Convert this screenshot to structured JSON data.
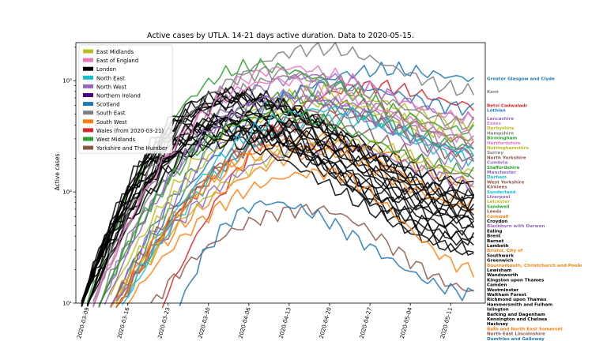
{
  "chart_data": {
    "type": "line",
    "title": "Active cases by UTLA.  14-21 days active duration.  Data to 2020-05-15.",
    "xlabel": "",
    "ylabel": "Active cases",
    "yscale": "log",
    "ylim": [
      10,
      2200
    ],
    "xlim": [
      "2020-03-07",
      "2020-05-17"
    ],
    "y_ticks": [
      {
        "value": 10,
        "label": "10¹"
      },
      {
        "value": 100,
        "label": "10²"
      },
      {
        "value": 1000,
        "label": "10³"
      }
    ],
    "x_ticks": [
      "2020-03-09",
      "2020-03-16",
      "2020-03-23",
      "2020-03-30",
      "2020-04-06",
      "2020-04-13",
      "2020-04-20",
      "2020-04-27",
      "2020-05-04",
      "2020-05-11"
    ],
    "grid": false,
    "legend_position": "top-left",
    "legend": [
      {
        "name": "East Midlands",
        "color": "#bcbd22"
      },
      {
        "name": "East of England",
        "color": "#e377c2"
      },
      {
        "name": "London",
        "color": "#000000"
      },
      {
        "name": "North East",
        "color": "#17becf"
      },
      {
        "name": "North West",
        "color": "#9467bd"
      },
      {
        "name": "Northern Ireland",
        "color": "#4b0082"
      },
      {
        "name": "Scotland",
        "color": "#1f77b4"
      },
      {
        "name": "South East",
        "color": "#7f7f7f"
      },
      {
        "name": "South West",
        "color": "#ff7f0e"
      },
      {
        "name": "Wales (from 2020-03-21)",
        "color": "#d62728"
      },
      {
        "name": "West Midlands",
        "color": "#2ca02c"
      },
      {
        "name": "Yorkshire and The Humber",
        "color": "#8c564b"
      }
    ],
    "series": [
      {
        "name": "Greater Glasgow and Clyde",
        "region": "Scotland",
        "start": "2020-03-12",
        "rise": 3.2,
        "peak_date": "2020-05-01",
        "peak": 1250,
        "end": 1050
      },
      {
        "name": "Kent",
        "region": "South East",
        "start": "2020-03-09",
        "rise": 3.6,
        "peak_date": "2020-04-19",
        "peak": 1950,
        "end": 800
      },
      {
        "name": "Betsi Cadwaladr",
        "region": "Wales (from 2020-03-21)",
        "start": "2020-03-21",
        "rise": 3.0,
        "peak_date": "2020-04-28",
        "peak": 900,
        "end": 600
      },
      {
        "name": "Lothian",
        "region": "Scotland",
        "start": "2020-03-12",
        "rise": 3.2,
        "peak_date": "2020-04-22",
        "peak": 900,
        "end": 560
      },
      {
        "name": "Lancashire",
        "region": "North West",
        "start": "2020-03-10",
        "rise": 3.5,
        "peak_date": "2020-04-18",
        "peak": 1100,
        "end": 460
      },
      {
        "name": "Derbyshire",
        "region": "East Midlands",
        "start": "2020-03-11",
        "rise": 3.5,
        "peak_date": "2020-04-20",
        "peak": 800,
        "end": 400
      },
      {
        "name": "Birmingham",
        "region": "West Midlands",
        "start": "2020-03-08",
        "rise": 3.7,
        "peak_date": "2020-04-08",
        "peak": 1350,
        "end": 350
      },
      {
        "name": "Cornwall",
        "region": "South West",
        "start": "2020-03-12",
        "rise": 3.0,
        "peak_date": "2020-04-25",
        "peak": 250,
        "end": 120
      },
      {
        "name": "North Yorkshire",
        "region": "Yorkshire and The Humber",
        "start": "2020-03-13",
        "rise": 3.1,
        "peak_date": "2020-04-25",
        "peak": 600,
        "end": 280
      },
      {
        "name": "Cumbria",
        "region": "North West",
        "start": "2020-03-12",
        "rise": 3.3,
        "peak_date": "2020-04-20",
        "peak": 650,
        "end": 250
      },
      {
        "name": "West Yorkshire",
        "region": "Yorkshire and The Humber",
        "start": "2020-03-13",
        "rise": 3.1,
        "peak_date": "2020-04-24",
        "peak": 500,
        "end": 220
      },
      {
        "name": "Kirklees",
        "region": "Yorkshire and The Humber",
        "start": "2020-03-13",
        "rise": 3.2,
        "peak_date": "2020-04-24",
        "peak": 480,
        "end": 200
      },
      {
        "name": "Essex",
        "region": "East of England",
        "start": "2020-03-09",
        "rise": 3.5,
        "peak_date": "2020-04-14",
        "peak": 1300,
        "end": 450
      },
      {
        "name": "Nottinghamshire",
        "region": "East Midlands",
        "start": "2020-03-12",
        "rise": 3.3,
        "peak_date": "2020-04-20",
        "peak": 650,
        "end": 300
      },
      {
        "name": "Hampshire",
        "region": "South East",
        "start": "2020-03-10",
        "rise": 3.4,
        "peak_date": "2020-04-15",
        "peak": 1100,
        "end": 400
      },
      {
        "name": "Staffordshire",
        "region": "West Midlands",
        "start": "2020-03-10",
        "rise": 3.5,
        "peak_date": "2020-04-14",
        "peak": 700,
        "end": 250
      },
      {
        "name": "Sunderland",
        "region": "North East",
        "start": "2020-03-14",
        "rise": 3.0,
        "peak_date": "2020-04-22",
        "peak": 450,
        "end": 200
      },
      {
        "name": "Croydon",
        "region": "London",
        "start": "2020-03-07",
        "rise": 3.3,
        "peak_date": "2020-04-06",
        "peak": 700,
        "end": 120
      },
      {
        "name": "Ealing",
        "region": "London",
        "start": "2020-03-07",
        "rise": 3.4,
        "peak_date": "2020-04-05",
        "peak": 650,
        "end": 110
      },
      {
        "name": "Brent",
        "region": "London",
        "start": "2020-03-07",
        "rise": 3.5,
        "peak_date": "2020-04-03",
        "peak": 800,
        "end": 95
      },
      {
        "name": "Barnet",
        "region": "London",
        "start": "2020-03-07",
        "rise": 3.4,
        "peak_date": "2020-04-04",
        "peak": 700,
        "end": 90
      },
      {
        "name": "Leeds",
        "region": "Yorkshire and The Humber",
        "start": "2020-03-12",
        "rise": 3.2,
        "peak_date": "2020-04-20",
        "peak": 400,
        "end": 140
      },
      {
        "name": "Bristol, City of",
        "region": "South West",
        "start": "2020-03-12",
        "rise": 3.0,
        "peak_date": "2020-04-18",
        "peak": 300,
        "end": 80
      },
      {
        "name": "Leicester",
        "region": "East Midlands",
        "start": "2020-03-12",
        "rise": 3.1,
        "peak_date": "2020-04-24",
        "peak": 280,
        "end": 150
      },
      {
        "name": "Blackburn with Darwen",
        "region": "North West",
        "start": "2020-03-12",
        "rise": 3.2,
        "peak_date": "2020-04-22",
        "peak": 260,
        "end": 120
      },
      {
        "name": "Lewisham",
        "region": "London",
        "start": "2020-03-08",
        "rise": 3.2,
        "peak_date": "2020-04-06",
        "peak": 450,
        "end": 70
      },
      {
        "name": "Wandsworth",
        "region": "London",
        "start": "2020-03-08",
        "rise": 3.2,
        "peak_date": "2020-04-06",
        "peak": 500,
        "end": 65
      },
      {
        "name": "Bournemouth, Christchurch and Poole",
        "region": "South West",
        "start": "2020-03-13",
        "rise": 3.0,
        "peak_date": "2020-04-16",
        "peak": 250,
        "end": 72
      },
      {
        "name": "Kingston upon Thames",
        "region": "London",
        "start": "2020-03-08",
        "rise": 3.1,
        "peak_date": "2020-04-07",
        "peak": 350,
        "end": 62
      },
      {
        "name": "Westminster",
        "region": "London",
        "start": "2020-03-07",
        "rise": 3.3,
        "peak_date": "2020-04-01",
        "peak": 400,
        "end": 55
      },
      {
        "name": "Waltham Forest",
        "region": "London",
        "start": "2020-03-07",
        "rise": 3.3,
        "peak_date": "2020-04-03",
        "peak": 450,
        "end": 50
      },
      {
        "name": "Richmond upon Thames",
        "region": "London",
        "start": "2020-03-07",
        "rise": 3.2,
        "peak_date": "2020-04-04",
        "peak": 350,
        "end": 45
      },
      {
        "name": "Hammersmith and Fulham",
        "region": "London",
        "start": "2020-03-07",
        "rise": 3.2,
        "peak_date": "2020-04-03",
        "peak": 400,
        "end": 40
      },
      {
        "name": "Islington",
        "region": "London",
        "start": "2020-03-07",
        "rise": 3.2,
        "peak_date": "2020-04-03",
        "peak": 350,
        "end": 37
      },
      {
        "name": "Barking and Dagenham",
        "region": "London",
        "start": "2020-03-08",
        "rise": 3.2,
        "peak_date": "2020-04-04",
        "peak": 300,
        "end": 35
      },
      {
        "name": "Kensington and Chelsea",
        "region": "London",
        "start": "2020-03-07",
        "rise": 3.2,
        "peak_date": "2020-04-01",
        "peak": 280,
        "end": 30
      },
      {
        "name": "Hackney",
        "region": "London",
        "start": "2020-03-07",
        "rise": 3.3,
        "peak_date": "2020-04-02",
        "peak": 450,
        "end": 28
      },
      {
        "name": "Bath and North East Somerset",
        "region": "South West",
        "start": "2020-03-14",
        "rise": 3.0,
        "peak_date": "2020-04-20",
        "peak": 150,
        "end": 20
      },
      {
        "name": "North East Lincolnshire",
        "region": "Yorkshire and The Humber",
        "start": "2020-03-18",
        "rise": 2.8,
        "peak_date": "2020-04-18",
        "peak": 70,
        "end": 13
      },
      {
        "name": "Dumfries and Galloway",
        "region": "Scotland",
        "start": "2020-03-24",
        "rise": 3.0,
        "peak_date": "2020-04-10",
        "peak": 80,
        "end": 12
      },
      {
        "name": "Camden",
        "region": "London",
        "start": "2020-03-07",
        "rise": 3.4,
        "peak_date": "2020-04-02",
        "peak": 600,
        "end": 58
      },
      {
        "name": "Southwark",
        "region": "London",
        "start": "2020-03-07",
        "rise": 3.4,
        "peak_date": "2020-04-04",
        "peak": 750,
        "end": 80
      },
      {
        "name": "Lambeth",
        "region": "London",
        "start": "2020-03-07",
        "rise": 3.4,
        "peak_date": "2020-04-04",
        "peak": 700,
        "end": 85
      },
      {
        "name": "Greenwich",
        "region": "London",
        "start": "2020-03-08",
        "rise": 3.3,
        "peak_date": "2020-04-06",
        "peak": 500,
        "end": 75
      },
      {
        "name": "Surrey",
        "region": "South East",
        "start": "2020-03-09",
        "rise": 3.5,
        "peak_date": "2020-04-10",
        "peak": 1200,
        "end": 300
      },
      {
        "name": "Hertfordshire",
        "region": "East of England",
        "start": "2020-03-09",
        "rise": 3.5,
        "peak_date": "2020-04-12",
        "peak": 1000,
        "end": 320
      },
      {
        "name": "Manchester",
        "region": "North West",
        "start": "2020-03-10",
        "rise": 3.4,
        "peak_date": "2020-04-15",
        "peak": 700,
        "end": 230
      },
      {
        "name": "Liverpool",
        "region": "North West",
        "start": "2020-03-11",
        "rise": 3.4,
        "peak_date": "2020-04-14",
        "peak": 750,
        "end": 180
      },
      {
        "name": "Durham",
        "region": "North East",
        "start": "2020-03-14",
        "rise": 3.1,
        "peak_date": "2020-04-20",
        "peak": 550,
        "end": 230
      },
      {
        "name": "Sandwell",
        "region": "West Midlands",
        "start": "2020-03-10",
        "rise": 3.4,
        "peak_date": "2020-04-12",
        "peak": 500,
        "end": 150
      }
    ]
  }
}
